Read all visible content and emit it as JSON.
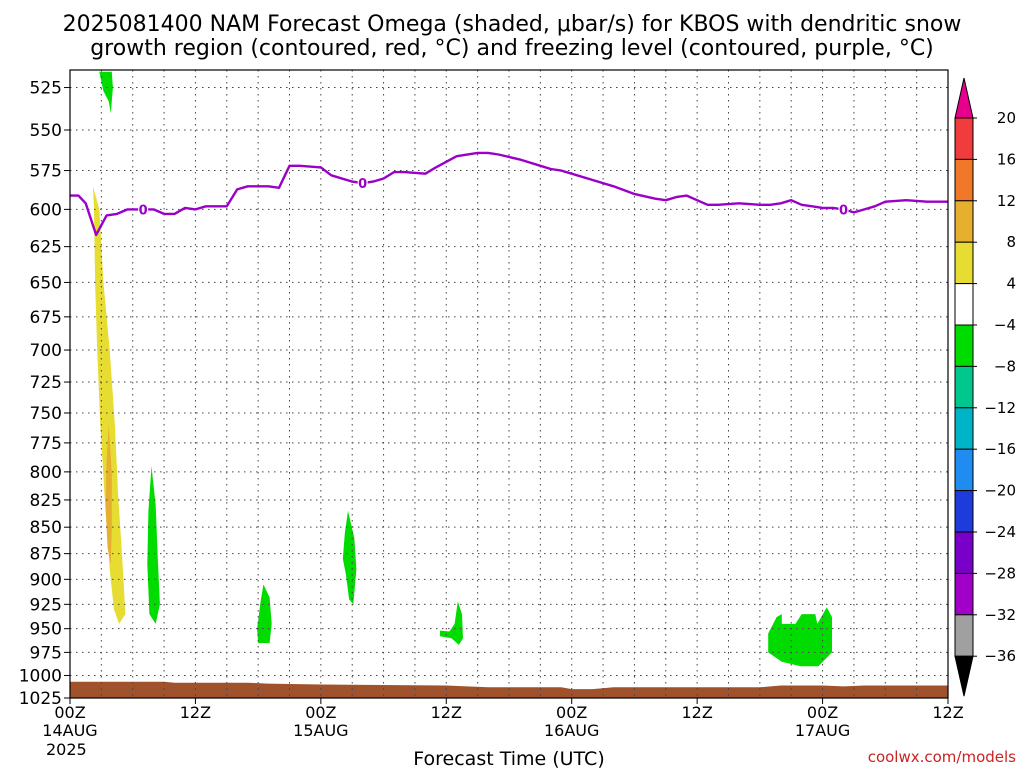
{
  "title_line1": "2025081400 NAM Forecast Omega (shaded, μbar/s) for KBOS with dendritic snow",
  "title_line2": "growth region (contoured, red, °C) and freezing level (contoured, purple, °C)",
  "credit": "coolwx.com/models",
  "colors": {
    "freezing_level": "#9a00c8",
    "ground": "#a0522d",
    "positive_4_8": "#e6dc32",
    "positive_8_12": "#e6af2d",
    "negative_minus4_minus8": "#00dc00"
  },
  "chart_data": {
    "type": "heatmap",
    "title": "2025081400 NAM Forecast Omega (shaded, μbar/s) for KBOS with dendritic snow growth region (contoured, red, °C) and freezing level (contoured, purple, °C)",
    "xlabel": "Forecast Time (UTC)",
    "ylabel": "",
    "x_hours_range": [
      0,
      84
    ],
    "y_pressure_range_hPa": [
      1025,
      515
    ],
    "y_scale": "log-pressure (inverted)",
    "grid": true,
    "x_ticks": [
      {
        "hour": 0,
        "label": "00Z",
        "date": "14AUG",
        "year": "2025"
      },
      {
        "hour": 12,
        "label": "12Z",
        "date": "",
        "year": ""
      },
      {
        "hour": 24,
        "label": "00Z",
        "date": "15AUG",
        "year": ""
      },
      {
        "hour": 36,
        "label": "12Z",
        "date": "",
        "year": ""
      },
      {
        "hour": 48,
        "label": "00Z",
        "date": "16AUG",
        "year": ""
      },
      {
        "hour": 60,
        "label": "12Z",
        "date": "",
        "year": ""
      },
      {
        "hour": 72,
        "label": "00Z",
        "date": "17AUG",
        "year": ""
      },
      {
        "hour": 84,
        "label": "12Z",
        "date": "",
        "year": ""
      }
    ],
    "y_ticks": [
      525,
      550,
      575,
      600,
      625,
      650,
      675,
      700,
      725,
      750,
      775,
      800,
      825,
      850,
      875,
      900,
      925,
      950,
      975,
      1000,
      1025
    ],
    "colorbar": {
      "labels": [
        "20",
        "16",
        "12",
        "8",
        "4",
        "-4",
        "-8",
        "-12",
        "-16",
        "-20",
        "-24",
        "-28",
        "-32",
        "-36"
      ],
      "colors": [
        "#e6008c",
        "#f03c3c",
        "#f07828",
        "#e6af2d",
        "#e6dc32",
        "#ffffff",
        "#00dc00",
        "#00c88c",
        "#00b4c8",
        "#1e8cf0",
        "#1e3cdc",
        "#7800c8",
        "#a000c8",
        "#a0a0a0",
        "#000000"
      ]
    },
    "freezing_level_contour": {
      "label": "0",
      "points": [
        [
          0,
          591
        ],
        [
          0.8,
          591
        ],
        [
          1.5,
          596
        ],
        [
          2.5,
          617
        ],
        [
          3.5,
          604
        ],
        [
          4.5,
          603
        ],
        [
          5.5,
          600
        ],
        [
          7,
          600
        ],
        [
          8,
          600
        ],
        [
          9,
          603
        ],
        [
          10,
          603
        ],
        [
          11,
          599
        ],
        [
          12,
          600
        ],
        [
          13,
          598
        ],
        [
          15,
          598
        ],
        [
          16,
          587
        ],
        [
          17,
          585
        ],
        [
          19,
          585
        ],
        [
          20,
          586
        ],
        [
          21,
          572
        ],
        [
          22,
          572
        ],
        [
          24,
          573
        ],
        [
          25,
          578
        ],
        [
          27,
          582
        ],
        [
          28,
          583
        ],
        [
          29,
          582
        ],
        [
          30,
          580
        ],
        [
          31,
          576
        ],
        [
          32,
          576
        ],
        [
          34,
          577
        ],
        [
          35,
          573
        ],
        [
          37,
          566
        ],
        [
          39,
          564
        ],
        [
          40,
          564
        ],
        [
          41,
          565
        ],
        [
          43,
          568
        ],
        [
          45,
          572
        ],
        [
          46,
          574
        ],
        [
          47,
          575
        ],
        [
          48,
          577
        ],
        [
          50,
          581
        ],
        [
          52,
          585
        ],
        [
          54,
          590
        ],
        [
          56,
          593
        ],
        [
          57,
          594
        ],
        [
          58,
          592
        ],
        [
          59,
          591
        ],
        [
          60,
          594
        ],
        [
          61,
          597
        ],
        [
          62,
          597
        ],
        [
          64,
          596
        ],
        [
          66,
          597
        ],
        [
          67,
          597
        ],
        [
          68,
          596
        ],
        [
          69,
          594
        ],
        [
          70,
          597
        ],
        [
          71,
          598
        ],
        [
          72,
          599
        ],
        [
          73,
          599
        ],
        [
          74,
          600
        ],
        [
          75,
          602
        ],
        [
          76,
          600
        ],
        [
          77,
          598
        ],
        [
          78,
          595
        ],
        [
          80,
          594
        ],
        [
          82,
          595
        ],
        [
          84,
          595
        ]
      ]
    },
    "omega_regions": [
      {
        "range": "4 to 8",
        "color": "#e6dc32",
        "points": [
          [
            2.2,
            585
          ],
          [
            2.8,
            600
          ],
          [
            3.2,
            650
          ],
          [
            3.8,
            700
          ],
          [
            4.3,
            760
          ],
          [
            4.6,
            820
          ],
          [
            5.0,
            880
          ],
          [
            5.3,
            935
          ],
          [
            4.7,
            945
          ],
          [
            4.2,
            930
          ],
          [
            3.8,
            890
          ],
          [
            3.3,
            820
          ],
          [
            2.9,
            760
          ],
          [
            2.6,
            700
          ],
          [
            2.4,
            650
          ],
          [
            2.3,
            600
          ]
        ]
      },
      {
        "range": "8 to 12",
        "color": "#e6af2d",
        "points": [
          [
            3.7,
            760
          ],
          [
            4.0,
            800
          ],
          [
            4.0,
            850
          ],
          [
            3.9,
            885
          ],
          [
            3.6,
            870
          ],
          [
            3.4,
            830
          ],
          [
            3.5,
            790
          ]
        ]
      },
      {
        "range": "-4 to -8",
        "color": "#00dc00",
        "points": [
          [
            2.8,
            516
          ],
          [
            4.0,
            516
          ],
          [
            4.1,
            525
          ],
          [
            3.9,
            540
          ],
          [
            3.7,
            533
          ],
          [
            3.2,
            527
          ]
        ]
      },
      {
        "range": "-4 to -8",
        "color": "#00dc00",
        "points": [
          [
            7.8,
            795
          ],
          [
            8.2,
            830
          ],
          [
            8.4,
            880
          ],
          [
            8.6,
            925
          ],
          [
            8.2,
            945
          ],
          [
            7.6,
            935
          ],
          [
            7.4,
            885
          ],
          [
            7.5,
            835
          ]
        ]
      },
      {
        "range": "-4 to -8",
        "color": "#00dc00",
        "points": [
          [
            18.5,
            905
          ],
          [
            19.1,
            918
          ],
          [
            19.3,
            945
          ],
          [
            19.1,
            965
          ],
          [
            18.0,
            965
          ],
          [
            17.9,
            950
          ],
          [
            18.2,
            925
          ]
        ]
      },
      {
        "range": "-4 to -8",
        "color": "#00dc00",
        "points": [
          [
            26.6,
            835
          ],
          [
            27.2,
            860
          ],
          [
            27.4,
            890
          ],
          [
            27.1,
            925
          ],
          [
            26.7,
            920
          ],
          [
            26.4,
            895
          ],
          [
            26.1,
            880
          ],
          [
            26.3,
            855
          ]
        ]
      },
      {
        "range": "-4 to -8",
        "color": "#00dc00",
        "points": [
          [
            37.1,
            922
          ],
          [
            37.5,
            935
          ],
          [
            37.6,
            960
          ],
          [
            37.2,
            967
          ],
          [
            36.5,
            960
          ],
          [
            35.4,
            958
          ],
          [
            35.4,
            952
          ],
          [
            36.3,
            953
          ],
          [
            36.8,
            945
          ]
        ]
      },
      {
        "range": "-4 to -8",
        "color": "#00dc00",
        "points": [
          [
            67.6,
            938
          ],
          [
            68.1,
            935
          ],
          [
            68.1,
            945
          ],
          [
            69.4,
            945
          ],
          [
            70.0,
            935
          ],
          [
            71.3,
            935
          ],
          [
            71.5,
            945
          ],
          [
            72.4,
            928
          ],
          [
            72.9,
            938
          ],
          [
            72.9,
            975
          ],
          [
            71.6,
            990
          ],
          [
            69.9,
            990
          ],
          [
            68.1,
            985
          ],
          [
            66.8,
            975
          ],
          [
            66.8,
            955
          ]
        ]
      }
    ],
    "ground_profile": [
      [
        0,
        1007
      ],
      [
        4,
        1007
      ],
      [
        9,
        1007
      ],
      [
        10,
        1008
      ],
      [
        17,
        1008
      ],
      [
        19,
        1009
      ],
      [
        24,
        1010
      ],
      [
        36,
        1011
      ],
      [
        40,
        1013
      ],
      [
        47,
        1013
      ],
      [
        48,
        1015
      ],
      [
        50,
        1015
      ],
      [
        52,
        1013
      ],
      [
        63,
        1013
      ],
      [
        66,
        1013
      ],
      [
        68,
        1011
      ],
      [
        72,
        1011
      ],
      [
        74,
        1012
      ],
      [
        76,
        1011
      ],
      [
        84,
        1011
      ]
    ]
  }
}
